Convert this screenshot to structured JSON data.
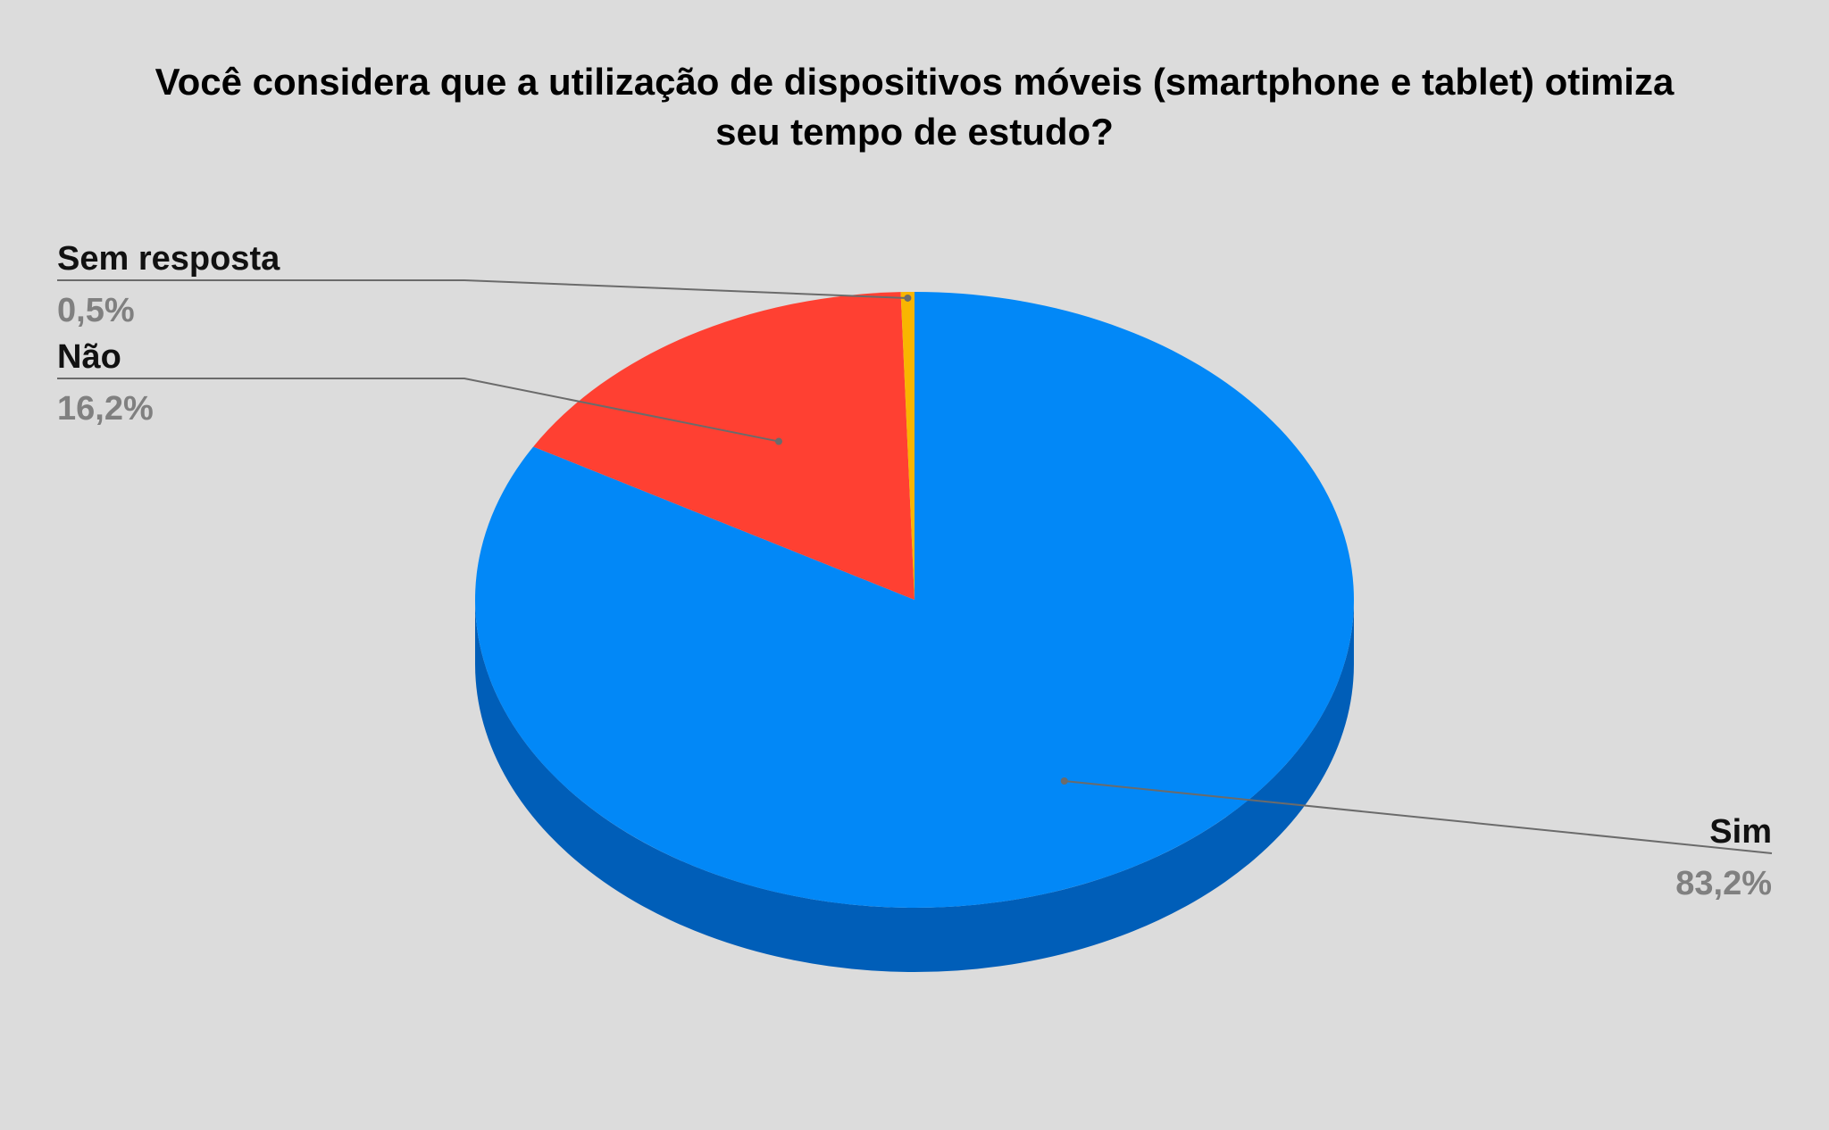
{
  "chart_data": {
    "type": "pie",
    "title_lines": [
      "Você considera que a utilização de dispositivos móveis (smartphone e tablet) otimiza",
      "seu tempo de estudo?"
    ],
    "slices": [
      {
        "label": "Sim",
        "value": 83.2,
        "value_label": "83,2%",
        "color": "#0288f7",
        "side_color": "#005eb8"
      },
      {
        "label": "Não",
        "value": 16.2,
        "value_label": "16,2%",
        "color": "#ff4032",
        "side_color": "#c0261c"
      },
      {
        "label": "Sem resposta",
        "value": 0.5,
        "value_label": "0,5%",
        "color": "#f9b500",
        "side_color": "#b88500"
      }
    ],
    "legend": "none",
    "style": "3d"
  }
}
